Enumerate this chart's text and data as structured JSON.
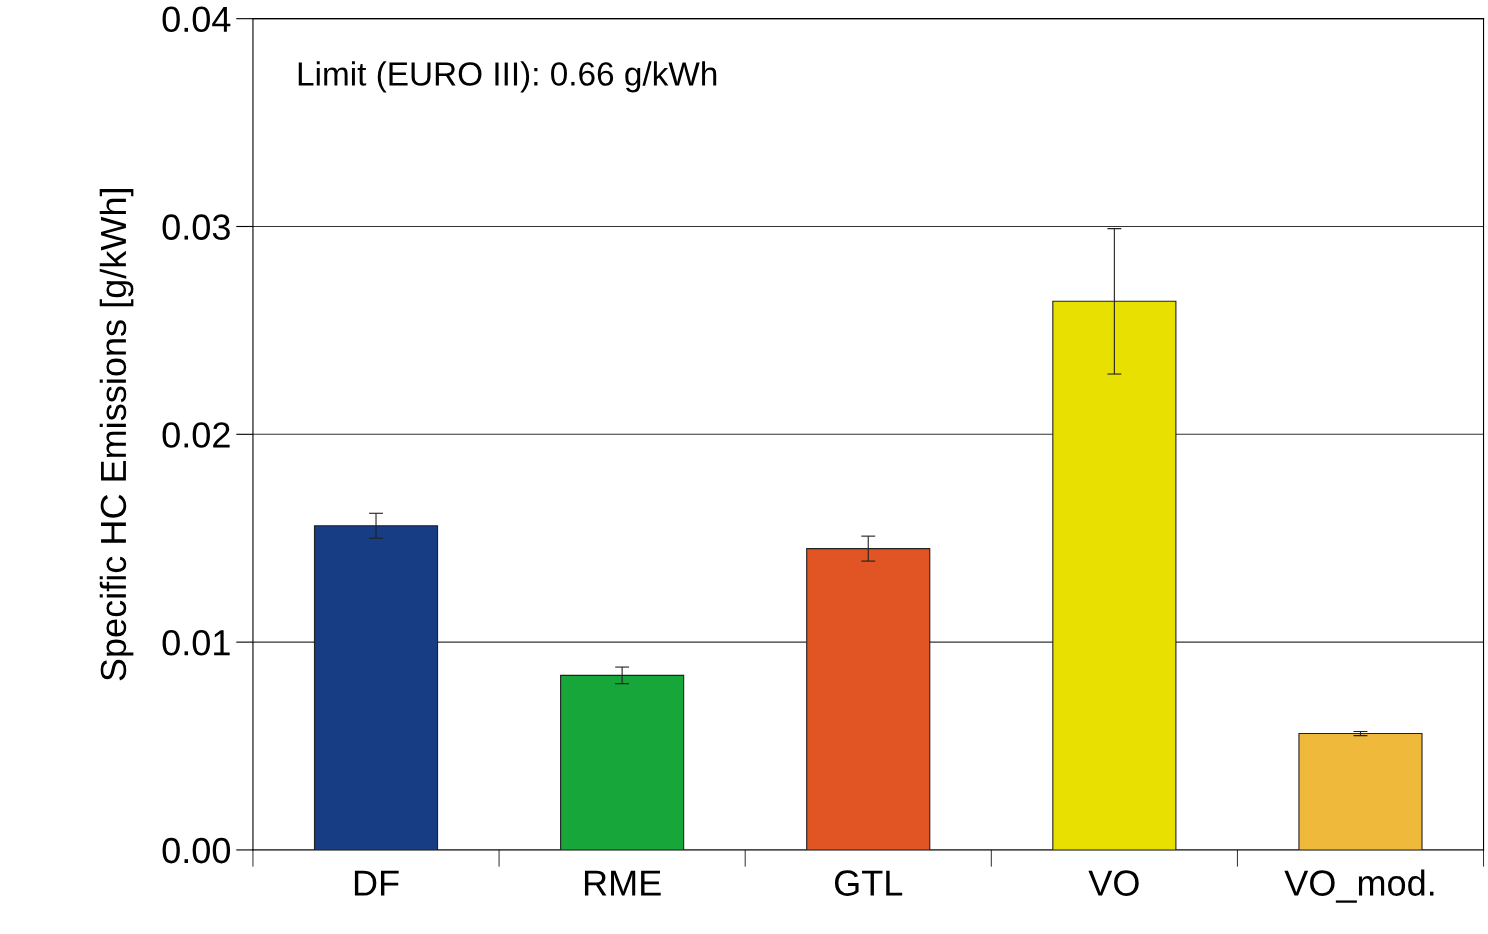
{
  "chart_data": {
    "type": "bar",
    "ylabel": "Specific HC Emissions [g/kWh]",
    "categories": [
      "DF",
      "RME",
      "GTL",
      "VO",
      "VO_mod."
    ],
    "values": [
      0.0156,
      0.0084,
      0.0145,
      0.0264,
      0.0056
    ],
    "errors": [
      0.0006,
      0.0004,
      0.0006,
      0.0035,
      0.0001
    ],
    "colors": [
      "#173d84",
      "#17a63a",
      "#e05523",
      "#e8e000",
      "#efba3c"
    ],
    "ylim": [
      0,
      0.04
    ],
    "yticks": [
      {
        "value": 0,
        "label": "0.00"
      },
      {
        "value": 0.01,
        "label": "0.01"
      },
      {
        "value": 0.02,
        "label": "0.02"
      },
      {
        "value": 0.03,
        "label": "0.03"
      },
      {
        "value": 0.04,
        "label": "0.04"
      }
    ],
    "grid": "y",
    "annotations": [
      "Limit (EURO III): 0.66 g/kWh"
    ]
  }
}
